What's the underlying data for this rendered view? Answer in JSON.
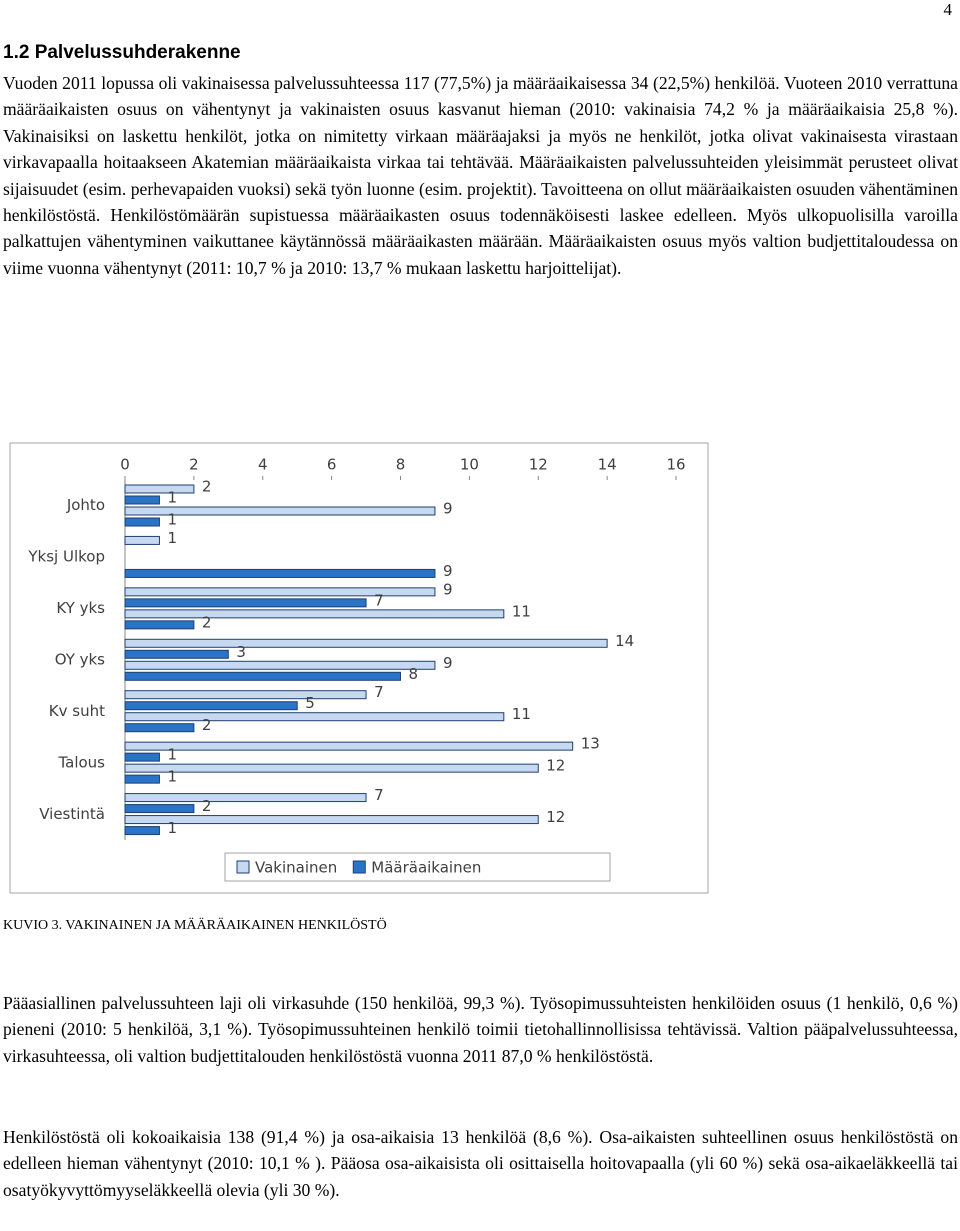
{
  "page_number": "4",
  "heading": "1.2 Palvelussuhderakenne",
  "paragraphs": [
    "Vuoden 2011 lopussa oli vakinaisessa palvelussuhteessa 117 (77,5%) ja määräaikaisessa 34 (22,5%) henkilöä. Vuoteen 2010 verrattuna määräaikaisten osuus on vähentynyt ja vakinaisten osuus kasvanut hieman (2010: vakinaisia 74,2 % ja määräaikaisia 25,8 %). Vakinaisiksi on laskettu henkilöt, jotka on nimitetty virkaan määräajaksi ja myös ne henkilöt, jotka olivat vakinaisesta virastaan virkavapaalla hoitaakseen Akatemian määräaikaista virkaa tai tehtävää. Määräaikaisten palvelussuhteiden yleisimmät perusteet olivat sijaisuudet (esim. perhevapaiden vuoksi) sekä työn luonne (esim. projektit). Tavoitteena on ollut määräaikaisten osuuden vähentäminen henkilöstöstä. Henkilöstömäärän supistuessa määräaikasten osuus todennäköisesti laskee edelleen. Myös ulkopuolisilla varoilla palkattujen vähentyminen vaikuttanee käytännössä määräaikasten määrään. Määräaikaisten osuus myös valtion budjettitaloudessa on viime vuonna vähentynyt (2011: 10,7 % ja 2010: 13,7 % mukaan laskettu harjoittelijat).",
    "Pääasiallinen palvelussuhteen laji oli virkasuhde (150 henkilöä, 99,3 %). Työsopimussuhteisten henkilöiden osuus (1 henkilö, 0,6 %) pieneni (2010: 5 henkilöä, 3,1 %). Työsopimussuhteinen henkilö toimii tietohallinnollisissa tehtävissä. Valtion pääpalvelussuhteessa, virkasuhteessa, oli valtion budjettitalouden henkilöstöstä vuonna 2011 87,0 % henkilöstöstä.",
    "Henkilöstöstä oli kokoaikaisia 138 (91,4 %) ja osa-aikaisia 13 henkilöä (8,6 %). Osa-aikaisten suhteellinen osuus henkilöstöstä on edelleen hieman vähentynyt (2010: 10,1 % ). Pääosa osa-aikaisista oli osittaisella hoitovapaalla (yli 60 %) sekä osa-aikaeläkkeellä tai osatyökyvyttömyyseläkkeellä olevia (yli 30 %)."
  ],
  "chart_data": {
    "type": "hbar",
    "categories": [
      "Johto",
      "Yksj Ulkop",
      "KY yks",
      "OY yks",
      "Kv suht",
      "Talous",
      "Viestintä"
    ],
    "series": [
      {
        "name": "Vakinainen",
        "color": "#c6d9f1",
        "values": [
          2,
          1,
          9,
          14,
          7,
          13,
          7
        ]
      },
      {
        "name": "Määräaikainen",
        "color": "#2a74c8",
        "values": [
          1,
          null,
          7,
          3,
          5,
          1,
          2
        ]
      },
      {
        "color": "#c6d9f1",
        "values": [
          9,
          null,
          11,
          9,
          11,
          12,
          12
        ]
      },
      {
        "color": "#2a74c8",
        "values": [
          1,
          9,
          2,
          8,
          2,
          1,
          1
        ]
      }
    ],
    "xlim": [
      0,
      16
    ],
    "xticks": [
      0,
      2,
      4,
      6,
      8,
      10,
      12,
      14,
      16
    ]
  },
  "caption": "KUVIO 3. VAKINAINEN JA MÄÄRÄAIKAINEN HENKILÖSTÖ"
}
